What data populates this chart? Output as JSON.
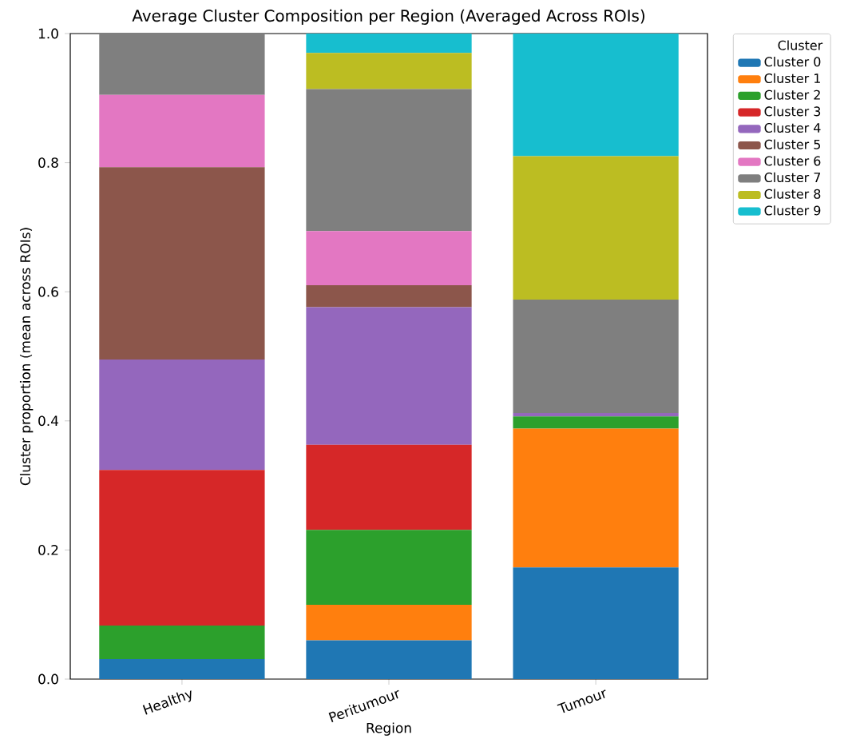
{
  "chart_data": {
    "type": "bar",
    "stacked": true,
    "title": "Average Cluster Composition per Region (Averaged Across ROIs)",
    "xlabel": "Region",
    "ylabel": "Cluster proportion (mean across ROIs)",
    "legend_title": "Cluster",
    "legend": "right",
    "categories": [
      "Healthy",
      "Peritumour",
      "Tumour"
    ],
    "ylim": [
      0,
      1
    ],
    "yticks": [
      {
        "value": 0,
        "label": "0.0"
      },
      {
        "value": 0.2,
        "label": "0.2"
      },
      {
        "value": 0.4,
        "label": "0.4"
      },
      {
        "value": 0.6,
        "label": "0.6"
      },
      {
        "value": 0.8,
        "label": "0.8"
      },
      {
        "value": 1,
        "label": "1.0"
      }
    ],
    "series": [
      {
        "name": "Cluster 0",
        "color": "#1f77b4",
        "values": [
          0.031,
          0.06,
          0.173
        ]
      },
      {
        "name": "Cluster 1",
        "color": "#ff7f0e",
        "values": [
          0,
          0.055,
          0.215
        ]
      },
      {
        "name": "Cluster 2",
        "color": "#2ca02c",
        "values": [
          0.052,
          0.116,
          0.019
        ]
      },
      {
        "name": "Cluster 3",
        "color": "#d62728",
        "values": [
          0.241,
          0.132,
          0
        ]
      },
      {
        "name": "Cluster 4",
        "color": "#9467bd",
        "values": [
          0.171,
          0.213,
          0.005
        ]
      },
      {
        "name": "Cluster 5",
        "color": "#8c564b",
        "values": [
          0.298,
          0.034,
          0
        ]
      },
      {
        "name": "Cluster 6",
        "color": "#e377c2",
        "values": [
          0.112,
          0.084,
          0
        ]
      },
      {
        "name": "Cluster 7",
        "color": "#7f7f7f",
        "values": [
          0.095,
          0.22,
          0.176
        ]
      },
      {
        "name": "Cluster 8",
        "color": "#bcbd22",
        "values": [
          0,
          0.056,
          0.222
        ]
      },
      {
        "name": "Cluster 9",
        "color": "#17becf",
        "values": [
          0,
          0.03,
          0.19
        ]
      }
    ]
  }
}
